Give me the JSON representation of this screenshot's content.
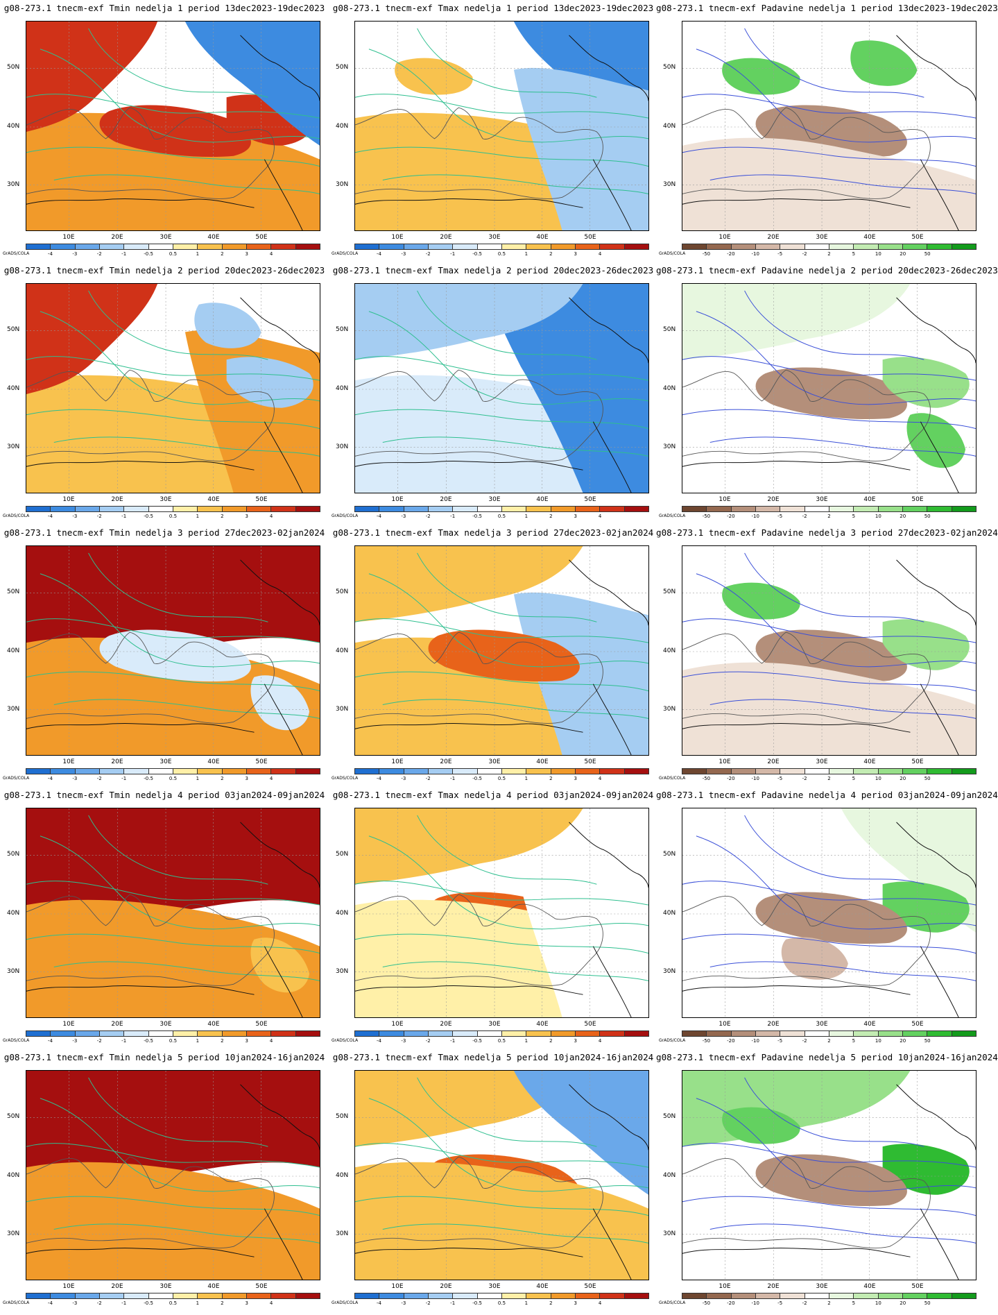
{
  "credit": "GrADS/COLA",
  "lat_labels": [
    "50N",
    "40N",
    "30N"
  ],
  "lon_labels": [
    "10E",
    "20E",
    "30E",
    "40E",
    "50E"
  ],
  "legend_temp": {
    "colors": [
      "#1f6fd1",
      "#3d8be0",
      "#6aa8ea",
      "#a5cdf2",
      "#d9ebfa",
      "#ffffff",
      "#fff0a8",
      "#f8c24e",
      "#f19a2a",
      "#e8631a",
      "#d03218",
      "#a50f0f"
    ],
    "labels": [
      "-4",
      "-3",
      "-2",
      "-1",
      "-0.5",
      "0.5",
      "1",
      "2",
      "3",
      "4"
    ]
  },
  "legend_prec": {
    "colors": [
      "#6e4630",
      "#94684f",
      "#b48f7a",
      "#d4b8a8",
      "#efe1d6",
      "#ffffff",
      "#e7f7df",
      "#c3ecb3",
      "#98e08a",
      "#63d160",
      "#2fbb32",
      "#139b1c"
    ],
    "labels": [
      "-50",
      "-20",
      "-10",
      "-5",
      "-2",
      "2",
      "5",
      "10",
      "20",
      "50"
    ]
  },
  "panels": [
    {
      "title": "g08-273.1 tnecm-exf Tmin nedelja 1 period 13dec2023-19dec2023",
      "field": "tmin",
      "week": 1
    },
    {
      "title": "g08-273.1 tnecm-exf Tmax nedelja 1 period 13dec2023-19dec2023",
      "field": "tmax",
      "week": 1
    },
    {
      "title": "g08-273.1 tnecm-exf Padavine nedelja 1 period 13dec2023-19dec2023",
      "field": "prec",
      "week": 1
    },
    {
      "title": "g08-273.1 tnecm-exf Tmin nedelja 2 period 20dec2023-26dec2023",
      "field": "tmin",
      "week": 2
    },
    {
      "title": "g08-273.1 tnecm-exf Tmax nedelja 2 period 20dec2023-26dec2023",
      "field": "tmax",
      "week": 2
    },
    {
      "title": "g08-273.1 tnecm-exf Padavine nedelja 2 period 20dec2023-26dec2023",
      "field": "prec",
      "week": 2
    },
    {
      "title": "g08-273.1 tnecm-exf Tmin nedelja 3 period 27dec2023-02jan2024",
      "field": "tmin",
      "week": 3
    },
    {
      "title": "g08-273.1 tnecm-exf Tmax nedelja 3 period 27dec2023-02jan2024",
      "field": "tmax",
      "week": 3
    },
    {
      "title": "g08-273.1 tnecm-exf Padavine nedelja 3 period 27dec2023-02jan2024",
      "field": "prec",
      "week": 3
    },
    {
      "title": "g08-273.1 tnecm-exf Tmin nedelja 4 period 03jan2024-09jan2024",
      "field": "tmin",
      "week": 4
    },
    {
      "title": "g08-273.1 tnecm-exf Tmax nedelja 4 period 03jan2024-09jan2024",
      "field": "tmax",
      "week": 4
    },
    {
      "title": "g08-273.1 tnecm-exf Padavine nedelja 4 period 03jan2024-09jan2024",
      "field": "prec",
      "week": 4
    },
    {
      "title": "g08-273.1 tnecm-exf Tmin nedelja 5 period 10jan2024-16jan2024",
      "field": "tmin",
      "week": 5
    },
    {
      "title": "g08-273.1 tnecm-exf Tmax nedelja 5 period 10jan2024-16jan2024",
      "field": "tmax",
      "week": 5
    },
    {
      "title": "g08-273.1 tnecm-exf Padavine nedelja 5 period 10jan2024-16jan2024",
      "field": "prec",
      "week": 5
    }
  ]
}
